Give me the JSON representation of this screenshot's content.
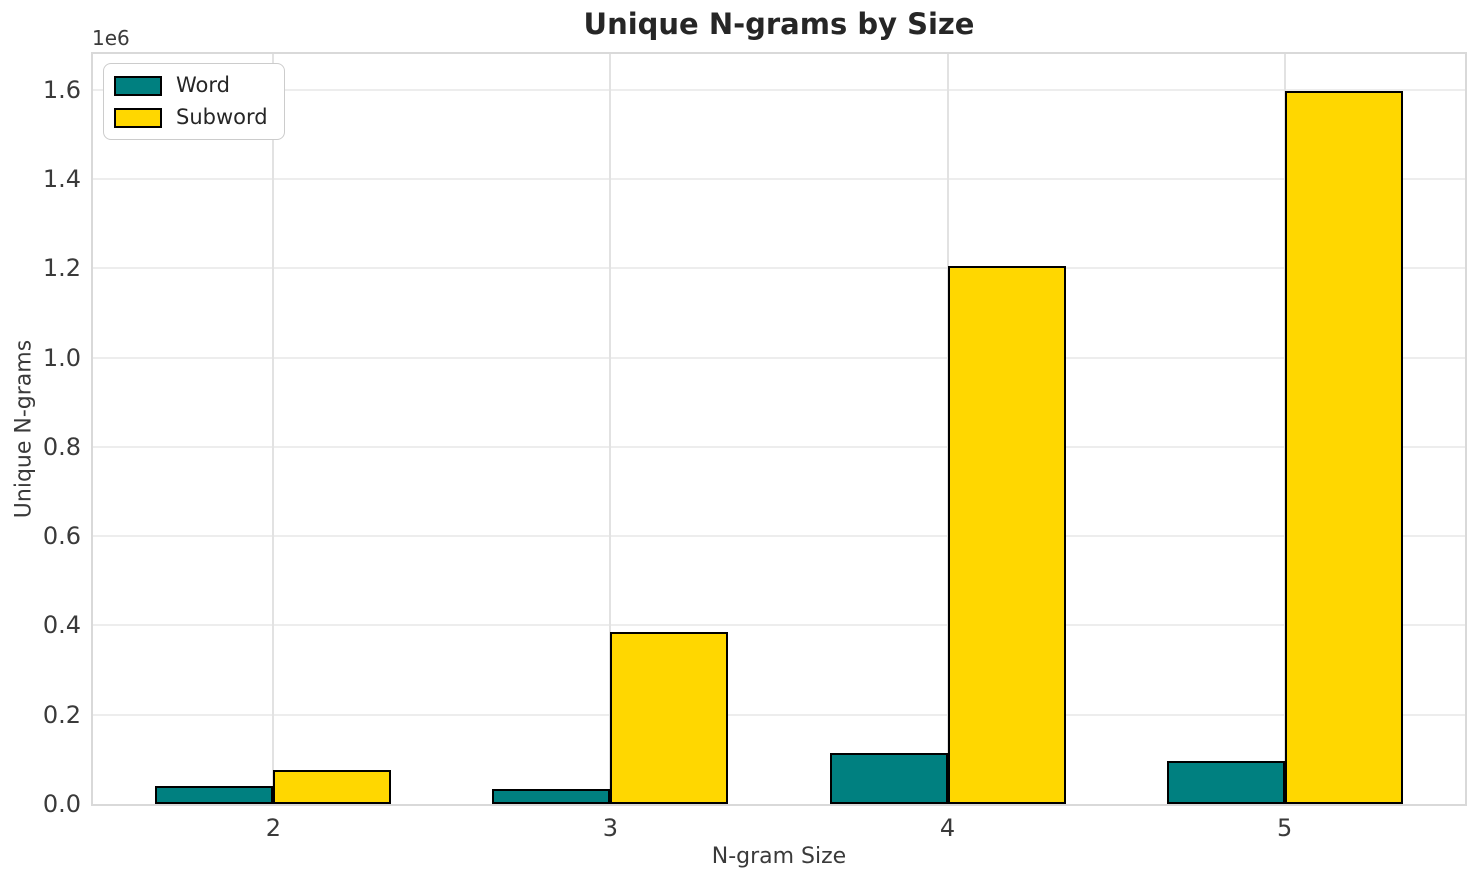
{
  "title": "Unique N-grams by Size",
  "axes": {
    "xlabel": "N-gram Size",
    "ylabel": "Unique N-grams",
    "offset_text": "1e6",
    "x_ticks": [
      "2",
      "3",
      "4",
      "5"
    ],
    "y_ticks": [
      "0.0",
      "0.2",
      "0.4",
      "0.6",
      "0.8",
      "1.0",
      "1.2",
      "1.4",
      "1.6"
    ]
  },
  "legend": {
    "position": "upper left",
    "entries": [
      "Word",
      "Subword"
    ]
  },
  "chart_data": {
    "type": "bar",
    "title": "Unique N-grams by Size",
    "xlabel": "N-gram Size",
    "ylabel": "Unique N-grams",
    "categories": [
      2,
      3,
      4,
      5
    ],
    "series": [
      {
        "name": "Word",
        "color": "#008080",
        "values": [
          40000,
          34000,
          114000,
          96000
        ]
      },
      {
        "name": "Subword",
        "color": "#ffd700",
        "values": [
          76000,
          386000,
          1206000,
          1597000
        ]
      }
    ],
    "bar_width": 0.35,
    "xlim": [
      1.465,
      5.535
    ],
    "ylim": [
      0,
      1680000
    ],
    "y_scale_factor": 1000000,
    "grid": true,
    "legend_position": "upper left",
    "bar_edge_color": "#000000"
  },
  "colors": {
    "grid_h": "#ededed",
    "grid_v": "#e2e2e2",
    "spine": "#d9d9d9",
    "tick_text": "#3a3a3a",
    "title_text": "#262626"
  }
}
